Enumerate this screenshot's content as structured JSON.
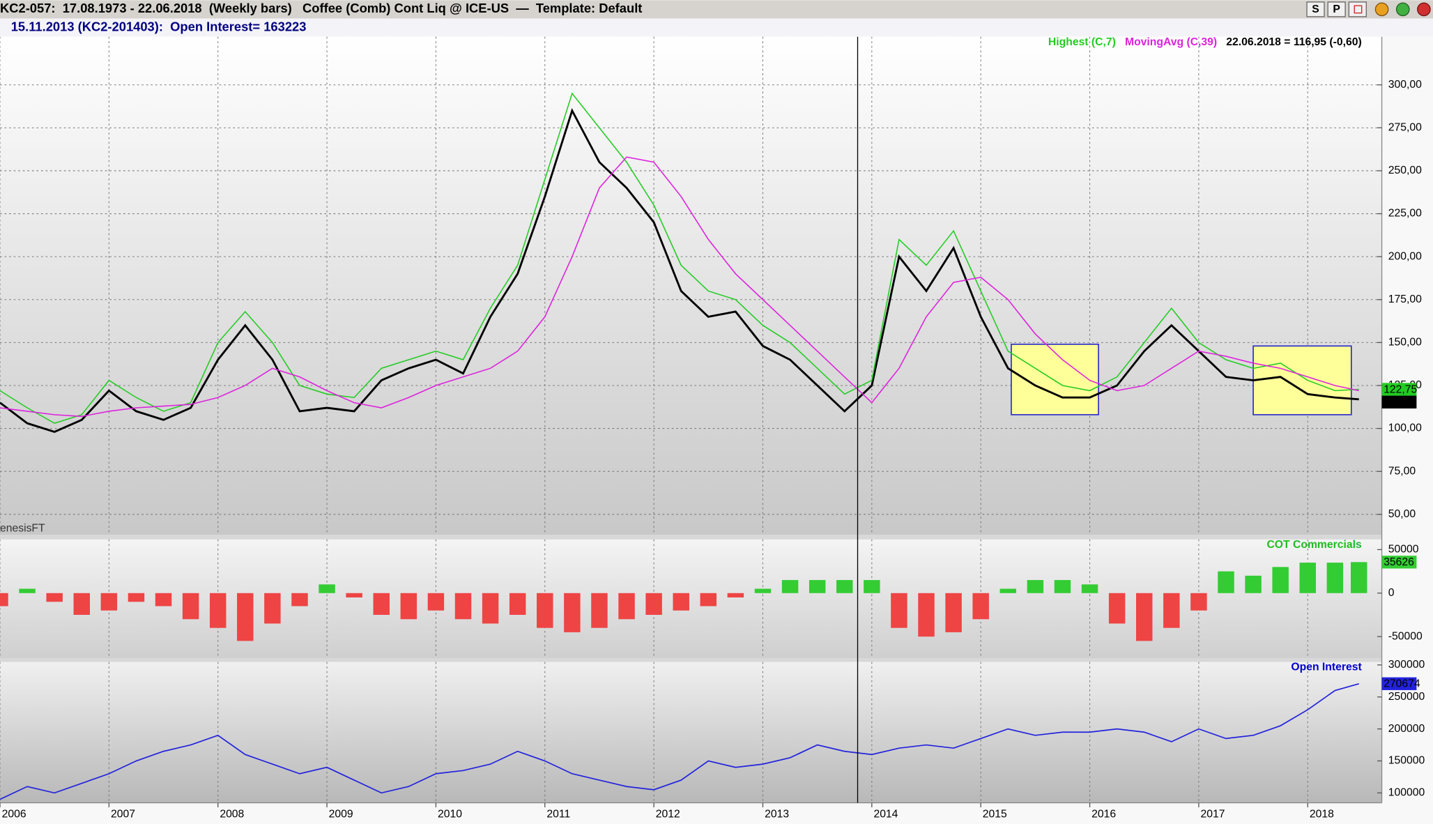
{
  "window": {
    "title": "KC2-057:  17.08.1973 - 22.06.2018  (Weekly bars)   Coffee (Comb) Cont Liq @ ICE-US  —  Template: Default",
    "buttons": [
      "S",
      "P"
    ],
    "info": "15.11.2013 (KC2-201403):  Open Interest= 163223",
    "watermark": "enesisFT"
  },
  "cursor_x": 2013.87,
  "chart_data": [
    {
      "type": "line",
      "legend_note": "22.06.2018 = 116,95 (-0,60)",
      "x": [
        2006,
        2006.25,
        2006.5,
        2006.75,
        2007,
        2007.25,
        2007.5,
        2007.75,
        2008,
        2008.25,
        2008.5,
        2008.75,
        2009,
        2009.25,
        2009.5,
        2009.75,
        2010,
        2010.25,
        2010.5,
        2010.75,
        2011,
        2011.25,
        2011.5,
        2011.75,
        2012,
        2012.25,
        2012.5,
        2012.75,
        2013,
        2013.25,
        2013.5,
        2013.75,
        2014,
        2014.25,
        2014.5,
        2014.75,
        2015,
        2015.25,
        2015.5,
        2015.75,
        2016,
        2016.25,
        2016.5,
        2016.75,
        2017,
        2017.25,
        2017.5,
        2017.75,
        2018,
        2018.25,
        2018.47
      ],
      "close": {
        "color": "#000000",
        "values": [
          115,
          103,
          98,
          105,
          122,
          110,
          105,
          112,
          140,
          160,
          140,
          110,
          112,
          110,
          128,
          135,
          140,
          132,
          165,
          190,
          235,
          285,
          255,
          240,
          220,
          180,
          165,
          168,
          148,
          140,
          125,
          110,
          125,
          200,
          180,
          205,
          165,
          135,
          125,
          118,
          118,
          125,
          145,
          160,
          145,
          130,
          128,
          130,
          120,
          118,
          116.95
        ],
        "value_labels": [
          null,
          null,
          null,
          null,
          null,
          null,
          null,
          null,
          null,
          null,
          null,
          null,
          null,
          null,
          null,
          null,
          null,
          null,
          null,
          null,
          null,
          null,
          null,
          null,
          null,
          null,
          null,
          null,
          null,
          null,
          null,
          null,
          null,
          null,
          null,
          null,
          null,
          null,
          null,
          null,
          null,
          null,
          null,
          null,
          null,
          null,
          null,
          null,
          null,
          null,
          "116,95"
        ]
      },
      "series": [
        {
          "name": "Highest (C,7)",
          "color": "#22cc22",
          "values": [
            122,
            112,
            103,
            108,
            128,
            118,
            110,
            115,
            150,
            168,
            150,
            125,
            120,
            118,
            135,
            140,
            145,
            140,
            170,
            195,
            245,
            295,
            275,
            255,
            230,
            195,
            180,
            175,
            160,
            150,
            135,
            120,
            128,
            210,
            195,
            215,
            180,
            145,
            135,
            125,
            122,
            130,
            150,
            170,
            150,
            140,
            135,
            138,
            128,
            122,
            122.75
          ],
          "value_labels": [
            null,
            null,
            null,
            null,
            null,
            null,
            null,
            null,
            null,
            null,
            null,
            null,
            null,
            null,
            null,
            null,
            null,
            null,
            null,
            null,
            null,
            null,
            null,
            null,
            null,
            null,
            null,
            null,
            null,
            null,
            null,
            null,
            null,
            null,
            null,
            null,
            null,
            null,
            null,
            null,
            null,
            null,
            null,
            null,
            null,
            null,
            null,
            null,
            null,
            null,
            "122,75"
          ]
        },
        {
          "name": "MovingAvg (C,39)",
          "color": "#dd22dd",
          "values": [
            112,
            110,
            108,
            107,
            110,
            112,
            113,
            114,
            118,
            125,
            135,
            130,
            122,
            115,
            112,
            118,
            125,
            130,
            135,
            145,
            165,
            200,
            240,
            258,
            255,
            235,
            210,
            190,
            175,
            160,
            145,
            130,
            115,
            135,
            165,
            185,
            188,
            175,
            155,
            140,
            128,
            122,
            125,
            135,
            145,
            142,
            138,
            135,
            130,
            125,
            122
          ]
        }
      ],
      "highlights": [
        {
          "x": [
            2015.28,
            2016.08
          ],
          "y": [
            108,
            149
          ]
        },
        {
          "x": [
            2017.5,
            2018.4
          ],
          "y": [
            108,
            148
          ]
        }
      ],
      "highlight_color": "#ffff99",
      "highlight_border": "#2222cc",
      "xlim": [
        2006,
        2018.68
      ],
      "ylim": [
        38,
        328
      ],
      "yticks": [
        {
          "value": 50,
          "label": "50,00"
        },
        {
          "value": 75,
          "label": "75,00"
        },
        {
          "value": 100,
          "label": "100,00"
        },
        {
          "value": 125,
          "label": "125,00"
        },
        {
          "value": 150,
          "label": "150,00"
        },
        {
          "value": 175,
          "label": "175,00"
        },
        {
          "value": 200,
          "label": "200,00"
        },
        {
          "value": 225,
          "label": "225,00"
        },
        {
          "value": 250,
          "label": "250,00"
        },
        {
          "value": 275,
          "label": "275,00"
        },
        {
          "value": 300,
          "label": "300,00"
        }
      ],
      "grid": true
    },
    {
      "type": "bar",
      "title": "COT Commercials",
      "title_color": "#22bb22",
      "x": [
        2006,
        2006.25,
        2006.5,
        2006.75,
        2007,
        2007.25,
        2007.5,
        2007.75,
        2008,
        2008.25,
        2008.5,
        2008.75,
        2009,
        2009.25,
        2009.5,
        2009.75,
        2010,
        2010.25,
        2010.5,
        2010.75,
        2011,
        2011.25,
        2011.5,
        2011.75,
        2012,
        2012.25,
        2012.5,
        2012.75,
        2013,
        2013.25,
        2013.5,
        2013.75,
        2014,
        2014.25,
        2014.5,
        2014.75,
        2015,
        2015.25,
        2015.5,
        2015.75,
        2016,
        2016.25,
        2016.5,
        2016.75,
        2017,
        2017.25,
        2017.5,
        2017.75,
        2018,
        2018.25,
        2018.47
      ],
      "values": [
        -15000,
        5000,
        -10000,
        -25000,
        -20000,
        -10000,
        -15000,
        -30000,
        -40000,
        -55000,
        -35000,
        -15000,
        10000,
        -5000,
        -25000,
        -30000,
        -20000,
        -30000,
        -35000,
        -25000,
        -40000,
        -45000,
        -40000,
        -30000,
        -25000,
        -20000,
        -15000,
        -5000,
        5000,
        15000,
        15000,
        15000,
        15000,
        -40000,
        -50000,
        -45000,
        -30000,
        5000,
        15000,
        15000,
        10000,
        -35000,
        -55000,
        -40000,
        -20000,
        25000,
        20000,
        30000,
        35000,
        35000,
        35626
      ],
      "positive_color": "#33cc33",
      "negative_color": "#ee4444",
      "xlim": [
        2006,
        2018.68
      ],
      "ylim": [
        -75000,
        61600
      ],
      "yticks": [
        -50000,
        0,
        50000
      ],
      "grid": false
    },
    {
      "type": "line",
      "title": "Open Interest",
      "title_color": "#0000cc",
      "x": [
        2006,
        2006.25,
        2006.5,
        2006.75,
        2007,
        2007.25,
        2007.5,
        2007.75,
        2008,
        2008.25,
        2008.5,
        2008.75,
        2009,
        2009.25,
        2009.5,
        2009.75,
        2010,
        2010.25,
        2010.5,
        2010.75,
        2011,
        2011.25,
        2011.5,
        2011.75,
        2012,
        2012.25,
        2012.5,
        2012.75,
        2013,
        2013.25,
        2013.5,
        2013.75,
        2014,
        2014.25,
        2014.5,
        2014.75,
        2015,
        2015.25,
        2015.5,
        2015.75,
        2016,
        2016.25,
        2016.5,
        2016.75,
        2017,
        2017.25,
        2017.5,
        2017.75,
        2018,
        2018.25,
        2018.47
      ],
      "color": "#2222dd",
      "values": [
        90000,
        110000,
        100000,
        115000,
        130000,
        150000,
        165000,
        175000,
        190000,
        160000,
        145000,
        130000,
        140000,
        120000,
        100000,
        110000,
        130000,
        135000,
        145000,
        165000,
        150000,
        130000,
        120000,
        110000,
        105000,
        120000,
        150000,
        140000,
        145000,
        155000,
        175000,
        165000,
        160000,
        170000,
        175000,
        170000,
        185000,
        200000,
        190000,
        195000,
        195000,
        200000,
        195000,
        180000,
        200000,
        185000,
        190000,
        205000,
        230000,
        260000,
        270674
      ],
      "xlim": [
        2006,
        2018.68
      ],
      "ylim": [
        84600,
        304600
      ],
      "yticks": [
        100000,
        150000,
        200000,
        250000,
        300000
      ],
      "xticks": [
        2006,
        2007,
        2008,
        2009,
        2010,
        2011,
        2012,
        2013,
        2014,
        2015,
        2016,
        2017,
        2018
      ],
      "grid": false
    }
  ]
}
